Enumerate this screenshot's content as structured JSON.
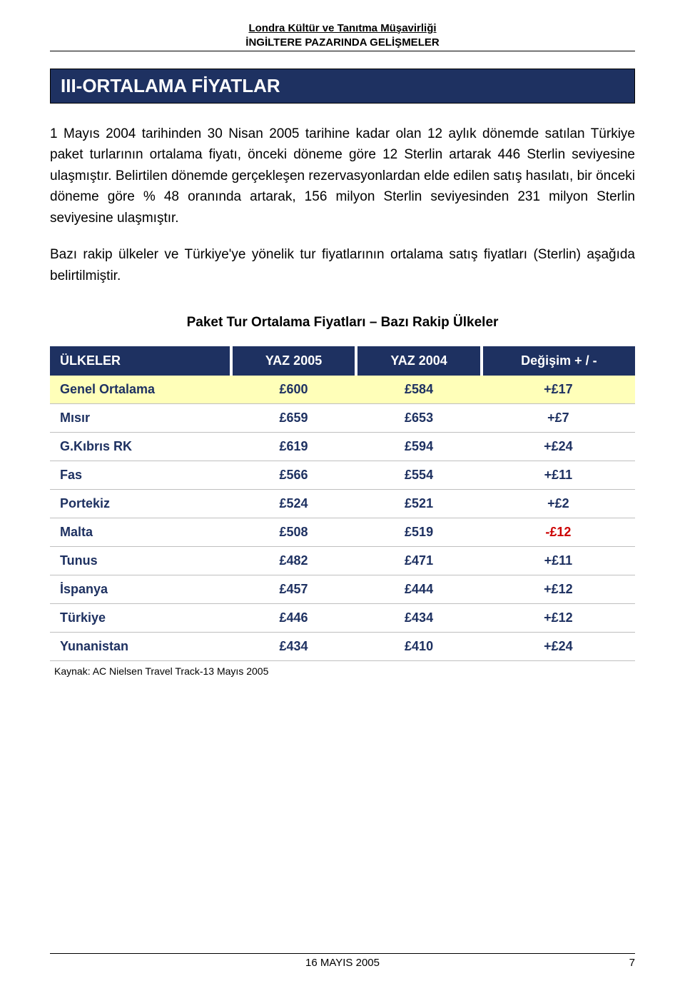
{
  "header": {
    "line1": "Londra Kültür ve Tanıtma Müşavirliği",
    "line2": "İNGİLTERE PAZARINDA GELİŞMELER"
  },
  "section_title": "III-ORTALAMA FİYATLAR",
  "paragraphs": {
    "p1": "1 Mayıs 2004 tarihinden 30 Nisan 2005 tarihine kadar olan 12 aylık dönemde satılan Türkiye paket turlarının ortalama fiyatı, önceki döneme göre 12 Sterlin artarak 446 Sterlin seviyesine ulaşmıştır. Belirtilen dönemde gerçekleşen rezervasyonlardan elde edilen satış hasılatı, bir önceki döneme göre % 48 oranında artarak, 156 milyon Sterlin seviyesinden 231 milyon Sterlin seviyesine ulaşmıştır.",
    "p2": "Bazı rakip ülkeler ve Türkiye'ye yönelik tur fiyatlarının ortalama satış fiyatları (Sterlin) aşağıda belirtilmiştir."
  },
  "table": {
    "title": "Paket Tur Ortalama Fiyatları – Bazı Rakip Ülkeler",
    "columns": [
      "ÜLKELER",
      "YAZ 2005",
      "YAZ 2004",
      "Değişim + / -"
    ],
    "rows": [
      {
        "country": "Genel Ortalama",
        "y2005": "£600",
        "y2004": "£584",
        "change": "+£17",
        "highlight": true,
        "negative": false
      },
      {
        "country": "Mısır",
        "y2005": "£659",
        "y2004": "£653",
        "change": "+£7",
        "highlight": false,
        "negative": false
      },
      {
        "country": "G.Kıbrıs RK",
        "y2005": "£619",
        "y2004": "£594",
        "change": "+£24",
        "highlight": false,
        "negative": false
      },
      {
        "country": "Fas",
        "y2005": "£566",
        "y2004": "£554",
        "change": "+£11",
        "highlight": false,
        "negative": false
      },
      {
        "country": "Portekiz",
        "y2005": "£524",
        "y2004": "£521",
        "change": "+£2",
        "highlight": false,
        "negative": false
      },
      {
        "country": "Malta",
        "y2005": "£508",
        "y2004": "£519",
        "change": "-£12",
        "highlight": false,
        "negative": true
      },
      {
        "country": "Tunus",
        "y2005": "£482",
        "y2004": "£471",
        "change": "+£11",
        "highlight": false,
        "negative": false
      },
      {
        "country": "İspanya",
        "y2005": "£457",
        "y2004": "£444",
        "change": "+£12",
        "highlight": false,
        "negative": false
      },
      {
        "country": "Türkiye",
        "y2005": "£446",
        "y2004": "£434",
        "change": "+£12",
        "highlight": false,
        "negative": false
      },
      {
        "country": "Yunanistan",
        "y2005": "£434",
        "y2004": "£410",
        "change": "+£24",
        "highlight": false,
        "negative": false
      }
    ],
    "source": "Kaynak: AC Nielsen Travel Track-13 Mayıs 2005"
  },
  "footer": {
    "date": "16 MAYIS 2005",
    "page": "7"
  },
  "colors": {
    "banner_bg": "#1e3161",
    "banner_fg": "#ffffff",
    "highlight_bg": "#ffffb9",
    "cell_text": "#1e3161",
    "negative": "#cc0000",
    "rule": "#bfbfbf"
  }
}
